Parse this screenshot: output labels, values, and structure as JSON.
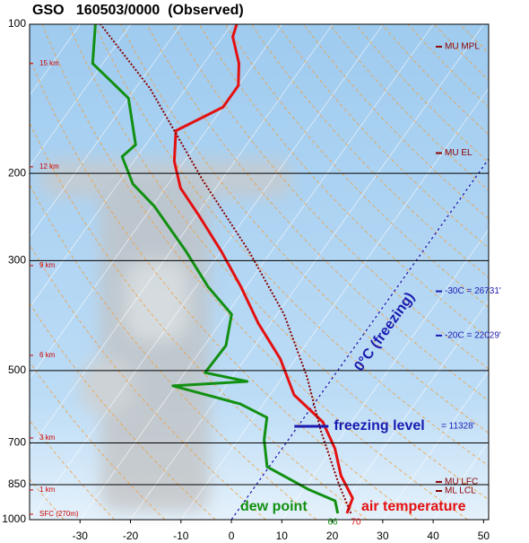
{
  "chart_data": {
    "type": "skewt",
    "title": "GSO   160503/0000  (Observed)",
    "ylim": [
      1000,
      100
    ],
    "log_scale": true,
    "yticks": [
      100,
      200,
      300,
      500,
      700,
      850,
      1000
    ],
    "xlim": [
      -40,
      51
    ],
    "xticks": [
      -30,
      -20,
      -10,
      0,
      10,
      20,
      30,
      40,
      50
    ],
    "series": [
      {
        "name": "air temperature",
        "color": "#e41010",
        "pressure": [
          971,
          905,
          815,
          719,
          635,
          560,
          474,
          401,
          339,
          287,
          243,
          214,
          189,
          164,
          147,
          133,
          120,
          106,
          100
        ],
        "values": [
          22,
          21,
          15.5,
          10.5,
          4.3,
          -5.2,
          -13,
          -22.5,
          -31,
          -40,
          -49.5,
          -57,
          -62,
          -66,
          -60,
          -60,
          -63,
          -68,
          -69
        ]
      },
      {
        "name": "dew point",
        "color": "#129012",
        "pressure": [
          971,
          916,
          868,
          782,
          690,
          622,
          584,
          537,
          526,
          505,
          445,
          385,
          339,
          287,
          233,
          210,
          185,
          175,
          141,
          120,
          100
        ],
        "values": [
          20.2,
          17.9,
          10.9,
          -0.4,
          -4.8,
          -7.4,
          -14.6,
          -30.5,
          -16.4,
          -26,
          -25.7,
          -29,
          -37.5,
          -47,
          -59.6,
          -67,
          -73,
          -72,
          -80,
          -92,
          -97
        ]
      },
      {
        "color": "#8b0000",
        "pressure": [
          971,
          850,
          662,
          515,
          385,
          287,
          206,
          135,
          100
        ],
        "values": [
          22.8,
          16.4,
          5.2,
          -5.2,
          -18.6,
          -34.5,
          -53.8,
          -77,
          -96
        ]
      }
    ],
    "freezing_isotherm": {
      "value": 0,
      "label": "0°C (freezing)"
    },
    "freezing_level": {
      "pressure": 648,
      "label": "freezing level",
      "height_label": "= 11328'"
    },
    "height_labels": [
      {
        "pressure": 120,
        "label": "15 km"
      },
      {
        "pressure": 194,
        "label": "12 km"
      },
      {
        "pressure": 307,
        "label": "9 km"
      },
      {
        "pressure": 466,
        "label": "6 km"
      },
      {
        "pressure": 684,
        "label": "3 km"
      },
      {
        "pressure": 871,
        "label": "1 km"
      },
      {
        "pressure": 975,
        "label": "SFC (270m)"
      }
    ],
    "level_labels": [
      {
        "pressure": 111,
        "label": "MU MPL",
        "color": "#8b0000"
      },
      {
        "pressure": 182,
        "label": "MU EL",
        "color": "#8b0000"
      },
      {
        "pressure": 346,
        "label": "-30C = 26731'",
        "color": "#1a1ab0"
      },
      {
        "pressure": 425,
        "label": "-20C = 22029'",
        "color": "#1a1ab0"
      },
      {
        "pressure": 839,
        "label": "MU LFC",
        "color": "#8b0000"
      },
      {
        "pressure": 875,
        "label": "ML LCL",
        "color": "#8b0000"
      }
    ],
    "surface_labels": [
      66,
      70
    ]
  }
}
